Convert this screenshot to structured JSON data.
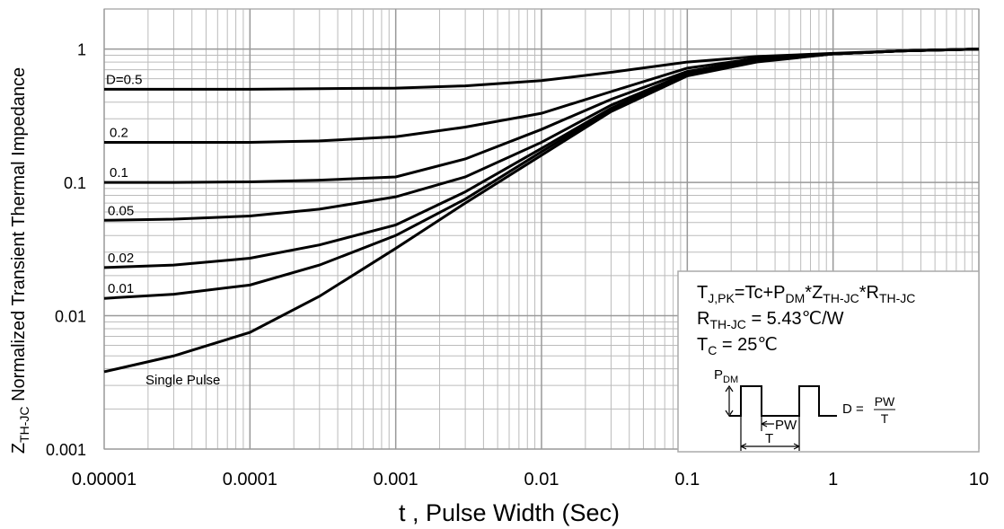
{
  "chart_data": {
    "type": "line",
    "x_label": "t , Pulse Width (Sec)",
    "y_label": [
      "Z",
      "TH-JC",
      " Normalized Transient Thermal Impedance"
    ],
    "x_log": true,
    "y_log": true,
    "grid": true,
    "xlim": [
      1e-05,
      10
    ],
    "ylim": [
      0.001,
      2
    ],
    "xticks": [
      1e-05,
      0.0001,
      0.001,
      0.01,
      0.1,
      1,
      10
    ],
    "yticks": [
      0.001,
      0.01,
      0.1,
      1
    ],
    "x": [
      1e-05,
      3e-05,
      0.0001,
      0.0003,
      0.001,
      0.003,
      0.01,
      0.03,
      0.1,
      0.3,
      1,
      3,
      10
    ],
    "series": [
      {
        "name": "D=0.5",
        "color": "#000000",
        "values": [
          0.5,
          0.5,
          0.5,
          0.505,
          0.51,
          0.53,
          0.58,
          0.67,
          0.8,
          0.88,
          0.93,
          0.97,
          1.0
        ]
      },
      {
        "name": "0.2",
        "color": "#000000",
        "values": [
          0.2,
          0.2,
          0.2,
          0.205,
          0.22,
          0.26,
          0.33,
          0.48,
          0.72,
          0.85,
          0.92,
          0.97,
          1.0
        ]
      },
      {
        "name": "0.1",
        "color": "#000000",
        "values": [
          0.1,
          0.1,
          0.101,
          0.104,
          0.11,
          0.15,
          0.25,
          0.42,
          0.68,
          0.83,
          0.92,
          0.97,
          1.0
        ]
      },
      {
        "name": "0.05",
        "color": "#000000",
        "values": [
          0.052,
          0.053,
          0.056,
          0.063,
          0.078,
          0.11,
          0.2,
          0.38,
          0.66,
          0.82,
          0.92,
          0.97,
          1.0
        ]
      },
      {
        "name": "0.02",
        "color": "#000000",
        "values": [
          0.023,
          0.024,
          0.027,
          0.034,
          0.048,
          0.085,
          0.18,
          0.36,
          0.65,
          0.82,
          0.92,
          0.97,
          1.0
        ]
      },
      {
        "name": "0.01",
        "color": "#000000",
        "values": [
          0.0135,
          0.0145,
          0.017,
          0.024,
          0.04,
          0.075,
          0.17,
          0.35,
          0.64,
          0.81,
          0.92,
          0.97,
          1.0
        ]
      },
      {
        "name": "Single Pulse",
        "color": "#000000",
        "values": [
          0.0038,
          0.005,
          0.0075,
          0.014,
          0.032,
          0.07,
          0.16,
          0.34,
          0.63,
          0.8,
          0.92,
          0.97,
          1.0
        ]
      }
    ],
    "annotation": {
      "lines": [
        [
          "T",
          "J,PK",
          "=Tc+P",
          "DM",
          "*Z",
          "TH-JC",
          "*R",
          "TH-JC"
        ],
        [
          "R",
          "TH-JC",
          " = 5.43℃/W"
        ],
        [
          "T",
          "C",
          " = 25℃"
        ]
      ],
      "pdm": [
        "P",
        "DM"
      ],
      "pw": "PW",
      "period": "T",
      "formula": "D =",
      "numerator": "PW",
      "denominator": "T"
    }
  }
}
